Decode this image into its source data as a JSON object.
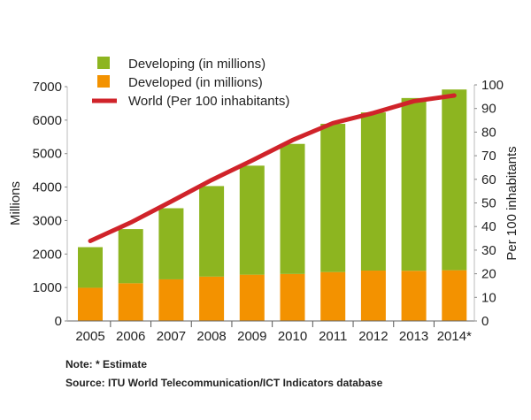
{
  "chart_data": {
    "type": "bar",
    "stacked": true,
    "categories": [
      "2005",
      "2006",
      "2007",
      "2008",
      "2009",
      "2010",
      "2011",
      "2012",
      "2013",
      "2014*"
    ],
    "series": [
      {
        "name": "Developing (in millions)",
        "type": "bar",
        "axis": "left",
        "color": "#8db520",
        "values": [
          1213,
          1618,
          2125,
          2705,
          3257,
          3886,
          4429,
          4725,
          5160,
          5399
        ]
      },
      {
        "name": "Developed (in millions)",
        "type": "bar",
        "axis": "left",
        "color": "#f39200",
        "values": [
          992,
          1127,
          1243,
          1325,
          1383,
          1404,
          1461,
          1505,
          1500,
          1516
        ]
      },
      {
        "name": "World (Per 100 inhabitants)",
        "type": "line",
        "axis": "right",
        "color": "#d0232a",
        "values": [
          33.9,
          41.7,
          50.6,
          59.7,
          68.0,
          76.6,
          83.8,
          88.1,
          93.1,
          95.5
        ]
      }
    ],
    "ylabel": "Millions",
    "ylabel_right": "Per 100 inhabitants",
    "ylim": [
      0,
      7000
    ],
    "yticks": [
      0,
      1000,
      2000,
      3000,
      4000,
      5000,
      6000,
      7000
    ],
    "ylim_right": [
      0,
      100
    ],
    "yticks_right": [
      0,
      10,
      20,
      30,
      40,
      50,
      60,
      70,
      80,
      90,
      100
    ],
    "grid": false,
    "legend_placement": "top-left"
  },
  "notes": {
    "note": "Note: * Estimate",
    "source": "Source:  ITU World Telecommunication/ICT Indicators database"
  }
}
